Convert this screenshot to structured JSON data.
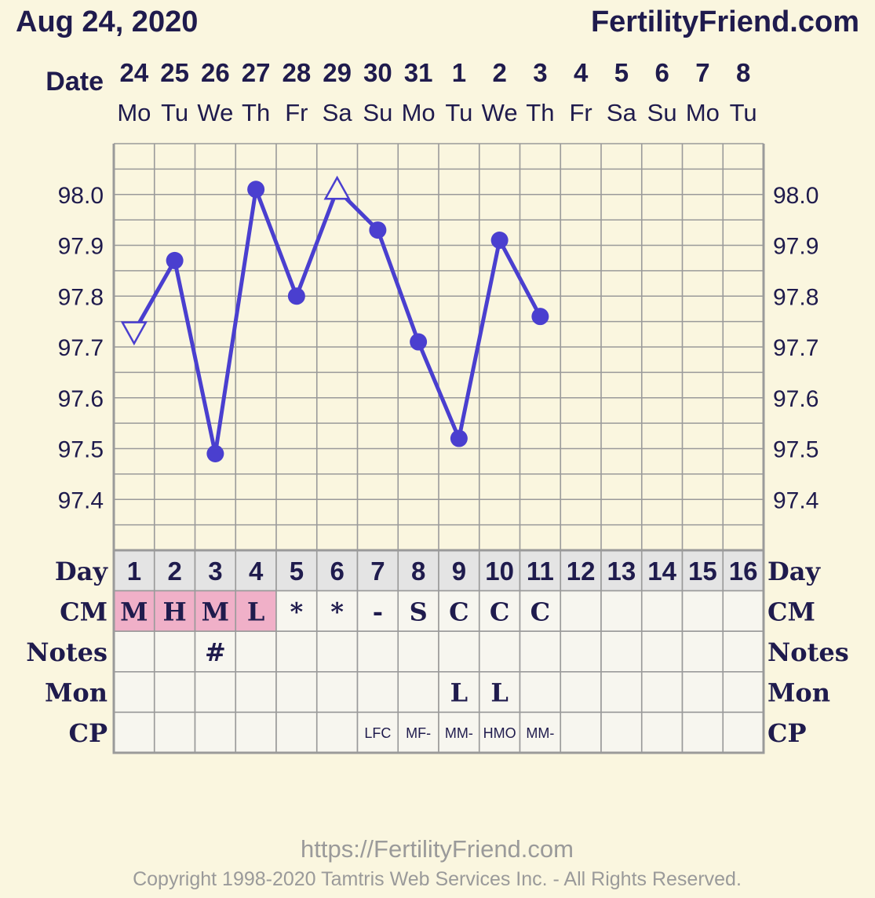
{
  "header": {
    "date": "Aug 24, 2020",
    "site": "FertilityFriend.com",
    "date_label": "Date"
  },
  "chart_data": {
    "type": "line",
    "days": [
      {
        "date": "24",
        "dow": "Mo",
        "day": "1",
        "cm": "M",
        "cm_highlight": true,
        "notes": "",
        "mon": "",
        "cp": ""
      },
      {
        "date": "25",
        "dow": "Tu",
        "day": "2",
        "cm": "H",
        "cm_highlight": true,
        "notes": "",
        "mon": "",
        "cp": ""
      },
      {
        "date": "26",
        "dow": "We",
        "day": "3",
        "cm": "M",
        "cm_highlight": true,
        "notes": "#",
        "mon": "",
        "cp": ""
      },
      {
        "date": "27",
        "dow": "Th",
        "day": "4",
        "cm": "L",
        "cm_highlight": true,
        "notes": "",
        "mon": "",
        "cp": ""
      },
      {
        "date": "28",
        "dow": "Fr",
        "day": "5",
        "cm": "*",
        "cm_highlight": false,
        "notes": "",
        "mon": "",
        "cp": ""
      },
      {
        "date": "29",
        "dow": "Sa",
        "day": "6",
        "cm": "*",
        "cm_highlight": false,
        "notes": "",
        "mon": "",
        "cp": ""
      },
      {
        "date": "30",
        "dow": "Su",
        "day": "7",
        "cm": "-",
        "cm_highlight": false,
        "notes": "",
        "mon": "",
        "cp": "LFC"
      },
      {
        "date": "31",
        "dow": "Mo",
        "day": "8",
        "cm": "S",
        "cm_highlight": false,
        "notes": "",
        "mon": "",
        "cp": "MF-"
      },
      {
        "date": "1",
        "dow": "Tu",
        "day": "9",
        "cm": "C",
        "cm_highlight": false,
        "notes": "",
        "mon": "L",
        "cp": "MM-"
      },
      {
        "date": "2",
        "dow": "We",
        "day": "10",
        "cm": "C",
        "cm_highlight": false,
        "notes": "",
        "mon": "L",
        "cp": "HMO"
      },
      {
        "date": "3",
        "dow": "Th",
        "day": "11",
        "cm": "C",
        "cm_highlight": false,
        "notes": "",
        "mon": "",
        "cp": "MM-"
      },
      {
        "date": "4",
        "dow": "Fr",
        "day": "12",
        "cm": "",
        "cm_highlight": false,
        "notes": "",
        "mon": "",
        "cp": ""
      },
      {
        "date": "5",
        "dow": "Sa",
        "day": "13",
        "cm": "",
        "cm_highlight": false,
        "notes": "",
        "mon": "",
        "cp": ""
      },
      {
        "date": "6",
        "dow": "Su",
        "day": "14",
        "cm": "",
        "cm_highlight": false,
        "notes": "",
        "mon": "",
        "cp": ""
      },
      {
        "date": "7",
        "dow": "Mo",
        "day": "15",
        "cm": "",
        "cm_highlight": false,
        "notes": "",
        "mon": "",
        "cp": ""
      },
      {
        "date": "8",
        "dow": "Tu",
        "day": "16",
        "cm": "",
        "cm_highlight": false,
        "notes": "",
        "mon": "",
        "cp": ""
      }
    ],
    "series": [
      {
        "values": [
          97.73,
          97.87,
          97.49,
          98.01,
          97.8,
          98.01,
          97.93,
          97.71,
          97.52,
          97.91,
          97.76
        ],
        "markers": [
          "triangle-open",
          "circle",
          "circle",
          "circle",
          "circle",
          "triangle-open",
          "circle",
          "circle",
          "circle",
          "circle",
          "circle"
        ],
        "color": "#4a3fcf"
      }
    ],
    "y_ticks": [
      "98.0",
      "97.9",
      "97.8",
      "97.7",
      "97.6",
      "97.5",
      "97.4"
    ],
    "y_tick_values": [
      98.0,
      97.9,
      97.8,
      97.7,
      97.6,
      97.5,
      97.4
    ],
    "ylim": [
      97.3,
      98.1
    ],
    "grid": true,
    "row_labels": {
      "day": "Day",
      "cm": "CM",
      "notes": "Notes",
      "mon": "Mon",
      "cp": "CP"
    },
    "colors": {
      "line": "#4a3fcf",
      "grid": "#9a9a9a",
      "cm_highlight": "#f0b0c8",
      "day_row_bg": "#e4e4e4",
      "cell_bg": "#f7f6ef"
    }
  },
  "footer": {
    "url": "https://FertilityFriend.com",
    "copyright": "Copyright 1998-2020 Tamtris Web Services Inc. - All Rights Reserved."
  }
}
